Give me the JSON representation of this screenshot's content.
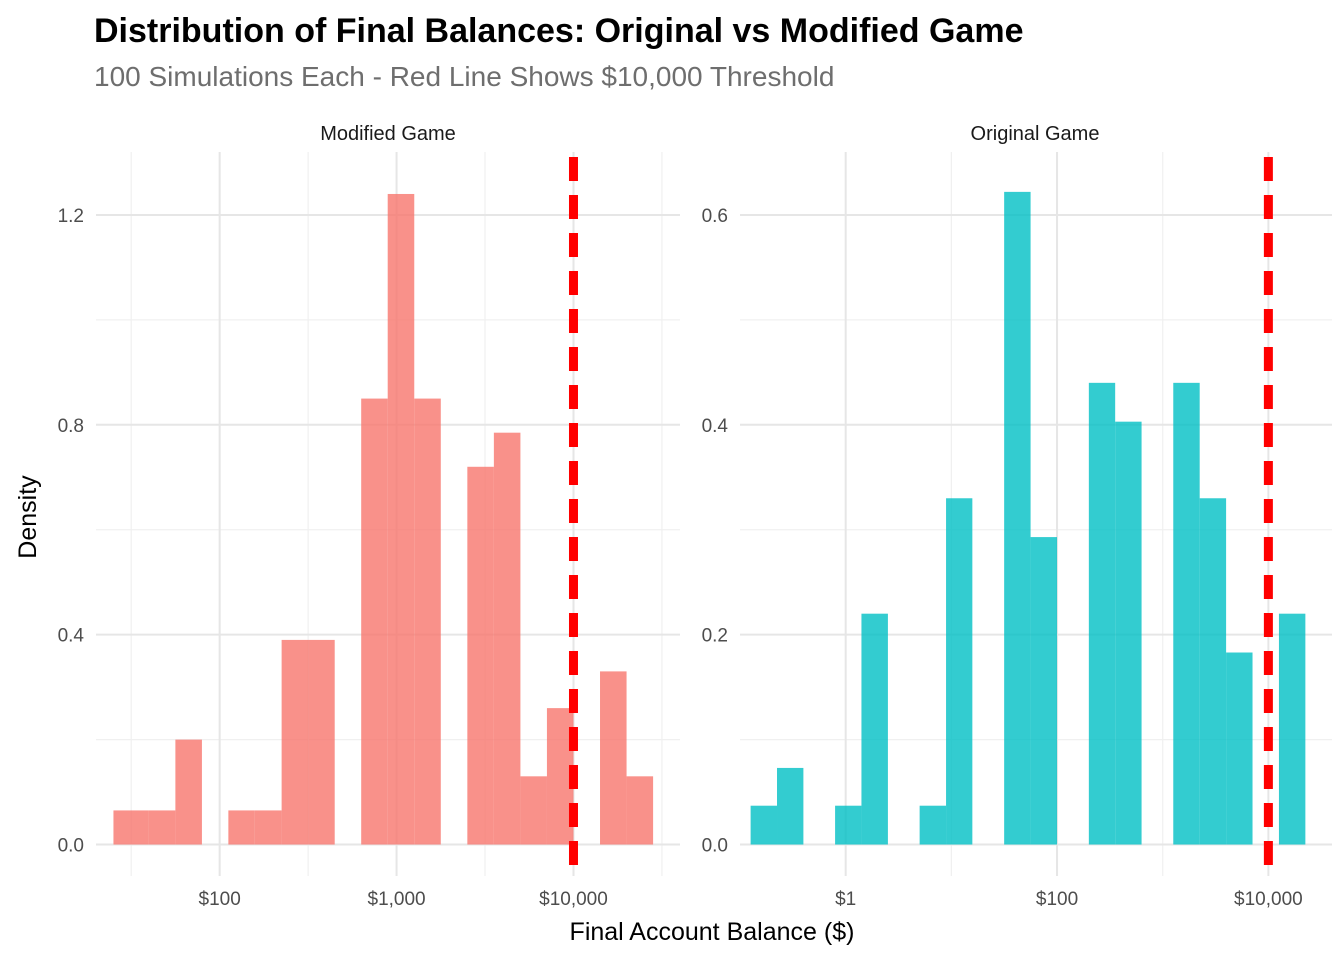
{
  "colors": {
    "modified": "#F8766D",
    "original": "#00BFC4",
    "threshold": "#FF0000",
    "grid_major": "#e6e6e6",
    "grid_minor": "#f0f0f0"
  },
  "chart_data": {
    "type": "histogram",
    "title": "Distribution of Final Balances: Original vs Modified Game",
    "subtitle": "100 Simulations Each - Red Line Shows $10,000 Threshold",
    "xlabel": "Final Account Balance ($)",
    "ylabel": "Density",
    "x_scale": "log10",
    "threshold": 10000,
    "threshold_style": "dashed",
    "grid": true,
    "panels": [
      {
        "name": "Modified Game",
        "color": "#F8766D",
        "xlim": [
          20,
          40000
        ],
        "ylim": [
          -0.06,
          1.32
        ],
        "y_ticks": [
          0.0,
          0.4,
          0.8,
          1.2
        ],
        "y_tick_labels": [
          "0.0",
          "0.4",
          "0.8",
          "1.2"
        ],
        "x_ticks": [
          100,
          1000,
          10000
        ],
        "x_tick_labels": [
          "$100",
          "$1,000",
          "$10,000"
        ],
        "bins": [
          {
            "x0": 25.1,
            "x1": 39.8,
            "density": 0.065
          },
          {
            "x0": 39.8,
            "x1": 56.2,
            "density": 0.065
          },
          {
            "x0": 56.2,
            "x1": 79.4,
            "density": 0.2
          },
          {
            "x0": 112,
            "x1": 158,
            "density": 0.065
          },
          {
            "x0": 158,
            "x1": 224,
            "density": 0.065
          },
          {
            "x0": 224,
            "x1": 316,
            "density": 0.39
          },
          {
            "x0": 316,
            "x1": 447,
            "density": 0.39
          },
          {
            "x0": 631,
            "x1": 891,
            "density": 0.85
          },
          {
            "x0": 891,
            "x1": 1259,
            "density": 1.24
          },
          {
            "x0": 1259,
            "x1": 1778,
            "density": 0.85
          },
          {
            "x0": 2512,
            "x1": 3548,
            "density": 0.72
          },
          {
            "x0": 3548,
            "x1": 5012,
            "density": 0.785
          },
          {
            "x0": 5012,
            "x1": 7079,
            "density": 0.13
          },
          {
            "x0": 7079,
            "x1": 10000,
            "density": 0.26
          },
          {
            "x0": 14125,
            "x1": 19953,
            "density": 0.33
          },
          {
            "x0": 19953,
            "x1": 28184,
            "density": 0.13
          }
        ]
      },
      {
        "name": "Original Game",
        "color": "#00BFC4",
        "xlim": [
          0.1,
          40000
        ],
        "ylim": [
          -0.03,
          0.66
        ],
        "y_ticks": [
          0.0,
          0.2,
          0.4,
          0.6
        ],
        "y_tick_labels": [
          "0.0",
          "0.2",
          "0.4",
          "0.6"
        ],
        "x_ticks": [
          1,
          100,
          10000
        ],
        "x_tick_labels": [
          "$1",
          "$100",
          "$10,000"
        ],
        "bins": [
          {
            "x0": 0.126,
            "x1": 0.224,
            "density": 0.037
          },
          {
            "x0": 0.224,
            "x1": 0.398,
            "density": 0.073
          },
          {
            "x0": 0.794,
            "x1": 1.41,
            "density": 0.037
          },
          {
            "x0": 1.41,
            "x1": 2.51,
            "density": 0.22
          },
          {
            "x0": 5.01,
            "x1": 8.91,
            "density": 0.037
          },
          {
            "x0": 8.91,
            "x1": 15.8,
            "density": 0.33
          },
          {
            "x0": 31.6,
            "x1": 56.2,
            "density": 0.622
          },
          {
            "x0": 56.2,
            "x1": 100,
            "density": 0.293
          },
          {
            "x0": 200,
            "x1": 355,
            "density": 0.44
          },
          {
            "x0": 355,
            "x1": 631,
            "density": 0.403
          },
          {
            "x0": 1259,
            "x1": 2239,
            "density": 0.44
          },
          {
            "x0": 2239,
            "x1": 3981,
            "density": 0.33
          },
          {
            "x0": 3981,
            "x1": 7079,
            "density": 0.183
          },
          {
            "x0": 12589,
            "x1": 22387,
            "density": 0.22
          }
        ]
      }
    ]
  }
}
